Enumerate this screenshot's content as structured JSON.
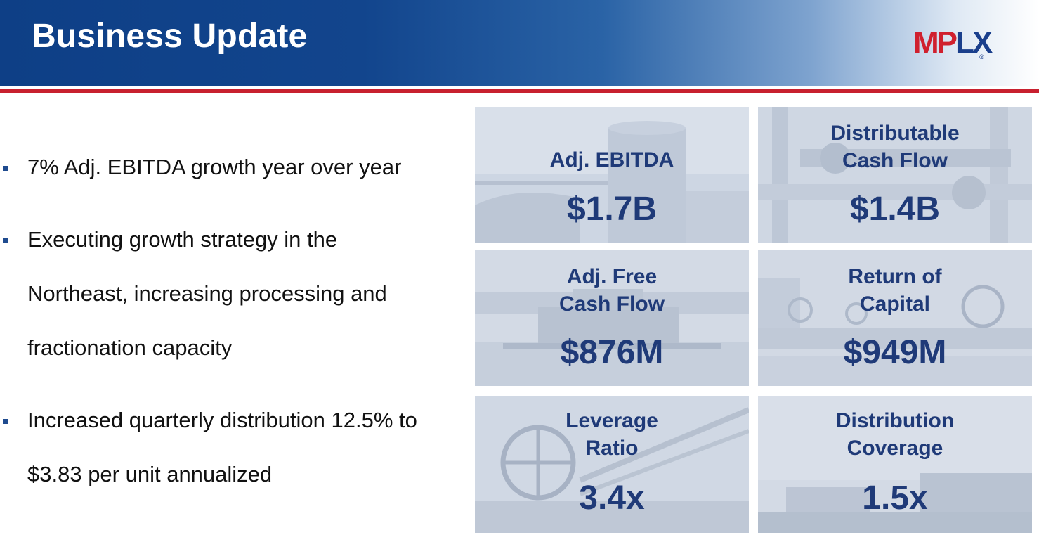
{
  "header": {
    "title": "Business Update",
    "logo": {
      "mp": "MP",
      "lx": "LX",
      "reg": "®"
    }
  },
  "colors": {
    "header_blue": "#12458d",
    "accent_red": "#c8202f",
    "tile_text": "#1f3a78",
    "logo_red": "#d0202e",
    "logo_blue": "#1a3f8c"
  },
  "bullets": [
    {
      "lines": [
        "7% Adj. EBITDA growth year over year"
      ]
    },
    {
      "lines": [
        "Executing growth strategy in the",
        "Northeast, increasing processing and",
        "fractionation capacity"
      ]
    },
    {
      "lines": [
        "Increased quarterly distribution 12.5% to",
        "$3.83 per unit annualized"
      ]
    }
  ],
  "metrics": [
    {
      "label": [
        "Adj. EBITDA"
      ],
      "value": "$1.7B",
      "bg_icon": "storage-tank-icon"
    },
    {
      "label": [
        "Distributable",
        "Cash Flow"
      ],
      "value": "$1.4B",
      "bg_icon": "pipes-icon"
    },
    {
      "label": [
        "Adj. Free",
        "Cash Flow"
      ],
      "value": "$876M",
      "bg_icon": "towboat-icon"
    },
    {
      "label": [
        "Return of",
        "Capital"
      ],
      "value": "$949M",
      "bg_icon": "valve-wheels-icon"
    },
    {
      "label": [
        "Leverage",
        "Ratio"
      ],
      "value": "3.4x",
      "bg_icon": "valve-wheel-icon"
    },
    {
      "label": [
        "Distribution",
        "Coverage"
      ],
      "value": "1.5x",
      "bg_icon": "tank-farm-icon"
    }
  ]
}
